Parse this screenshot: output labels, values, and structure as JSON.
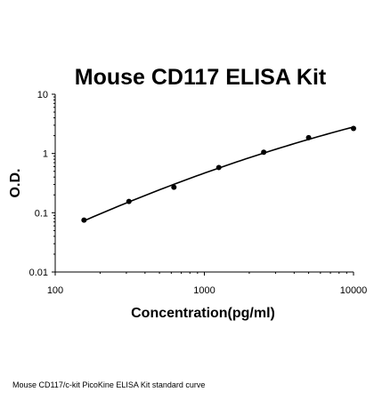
{
  "chart_data": {
    "type": "scatter",
    "title": "Mouse CD117 ELISA Kit",
    "xlabel": "Concentration(pg/ml)",
    "ylabel": "O.D.",
    "xscale": "log",
    "yscale": "log",
    "xlim": [
      100,
      10000
    ],
    "ylim": [
      0.01,
      10
    ],
    "x_ticks": [
      100,
      1000,
      10000
    ],
    "x_tick_labels": [
      "100",
      "1000",
      "10000"
    ],
    "y_ticks": [
      0.01,
      0.1,
      1,
      10
    ],
    "y_tick_labels": [
      "0.01",
      "0.1",
      "1",
      "10"
    ],
    "grid": false,
    "legend": "none",
    "series": [
      {
        "x": [
          156,
          312,
          625,
          1250,
          2500,
          5000,
          10000
        ],
        "y": [
          0.075,
          0.155,
          0.27,
          0.58,
          1.05,
          1.85,
          2.65
        ],
        "color": "#000000",
        "marker": "circle",
        "fit_line": true
      }
    ]
  },
  "caption": "Mouse CD117/c-kit PicoKine ELISA Kit standard curve"
}
